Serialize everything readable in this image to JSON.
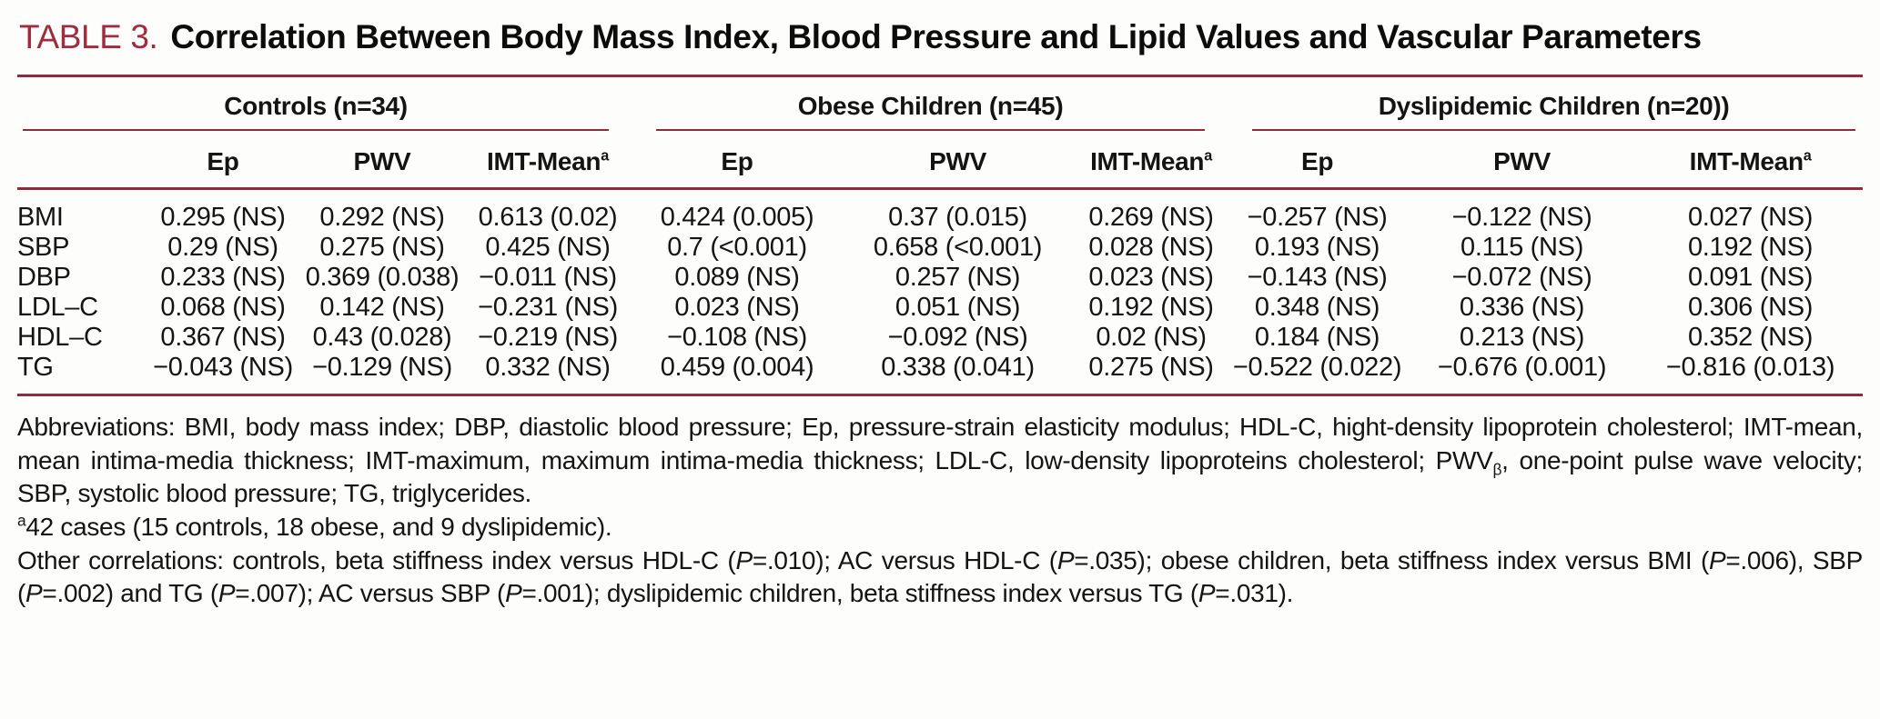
{
  "colors": {
    "accent_red": "#a02c40",
    "rule_red": "#8e2b3d",
    "text": "#141414",
    "background": "#fdfdfc"
  },
  "title": {
    "label": "TABLE 3.",
    "text": "Correlation Between Body Mass Index, Blood Pressure and Lipid Values and Vascular Parameters"
  },
  "table": {
    "groups": [
      {
        "label": "Controls (n=34)"
      },
      {
        "label": "Obese Children (n=45)"
      },
      {
        "label": "Dyslipidemic Children (n=20))"
      }
    ],
    "columns": [
      {
        "label": "Ep",
        "sup": ""
      },
      {
        "label": "PWV",
        "sup": ""
      },
      {
        "label": "IMT-Mean",
        "sup": "a"
      },
      {
        "label": "Ep",
        "sup": ""
      },
      {
        "label": "PWV",
        "sup": ""
      },
      {
        "label": "IMT-Mean",
        "sup": "a"
      },
      {
        "label": "Ep",
        "sup": ""
      },
      {
        "label": "PWV",
        "sup": ""
      },
      {
        "label": "IMT-Mean",
        "sup": "a"
      }
    ],
    "rows": [
      {
        "label": "BMI",
        "values": [
          "0.295 (NS)",
          "0.292 (NS)",
          "0.613 (0.02)",
          "0.424 (0.005)",
          "0.37 (0.015)",
          "0.269 (NS)",
          "−0.257 (NS)",
          "−0.122 (NS)",
          "0.027 (NS)"
        ]
      },
      {
        "label": "SBP",
        "values": [
          "0.29 (NS)",
          "0.275 (NS)",
          "0.425 (NS)",
          "0.7 (<0.001)",
          "0.658 (<0.001)",
          "0.028 (NS)",
          "0.193 (NS)",
          "0.115 (NS)",
          "0.192 (NS)"
        ]
      },
      {
        "label": "DBP",
        "values": [
          "0.233 (NS)",
          "0.369 (0.038)",
          "−0.011 (NS)",
          "0.089 (NS)",
          "0.257 (NS)",
          "0.023 (NS)",
          "−0.143 (NS)",
          "−0.072 (NS)",
          "0.091 (NS)"
        ]
      },
      {
        "label": "LDL–C",
        "values": [
          "0.068 (NS)",
          "0.142 (NS)",
          "−0.231 (NS)",
          "0.023 (NS)",
          "0.051 (NS)",
          "0.192 (NS)",
          "0.348 (NS)",
          "0.336 (NS)",
          "0.306 (NS)"
        ]
      },
      {
        "label": "HDL–C",
        "values": [
          "0.367 (NS)",
          "0.43 (0.028)",
          "−0.219 (NS)",
          "−0.108 (NS)",
          "−0.092 (NS)",
          "0.02 (NS)",
          "0.184 (NS)",
          "0.213 (NS)",
          "0.352 (NS)"
        ]
      },
      {
        "label": "TG",
        "values": [
          "−0.043 (NS)",
          "−0.129 (NS)",
          "0.332 (NS)",
          "0.459 (0.004)",
          "0.338 (0.041)",
          "0.275 (NS)",
          "−0.522 (0.022)",
          "−0.676 (0.001)",
          "−0.816 (0.013)"
        ]
      }
    ]
  },
  "footnotes": {
    "abbreviations": [
      {
        "text": "Abbreviations: BMI, body mass index; DBP, diastolic blood pressure; Ep, pressure-strain elasticity modulus; HDL-C, hight-density lipoprotein cholesterol; IMT-mean, mean intima-media thickness; IMT-maximum, maximum intima-media thickness; LDL-C, low-density lipoproteins cholesterol; PWV"
      },
      {
        "text": "β",
        "sub": true
      },
      {
        "text": ", one-point pulse wave velocity; SBP, systolic blood pressure; TG, triglycerides."
      }
    ],
    "cases": [
      {
        "text": "a",
        "sup": true
      },
      {
        "text": "42 cases (15 controls, 18 obese, and 9 dyslipidemic)."
      }
    ],
    "other": [
      {
        "text": "Other correlations: controls, beta stiffness index versus HDL-C ("
      },
      {
        "text": "P",
        "italic": true
      },
      {
        "text": "=.010); AC versus HDL-C ("
      },
      {
        "text": "P",
        "italic": true
      },
      {
        "text": "=.035); obese children, beta stiffness index versus BMI ("
      },
      {
        "text": "P",
        "italic": true
      },
      {
        "text": "=.006), SBP ("
      },
      {
        "text": "P",
        "italic": true
      },
      {
        "text": "=.002) and TG ("
      },
      {
        "text": "P",
        "italic": true
      },
      {
        "text": "=.007); AC versus SBP ("
      },
      {
        "text": "P",
        "italic": true
      },
      {
        "text": "=.001); dyslipidemic children, beta stiffness index versus TG ("
      },
      {
        "text": "P",
        "italic": true
      },
      {
        "text": "=.031)."
      }
    ]
  }
}
